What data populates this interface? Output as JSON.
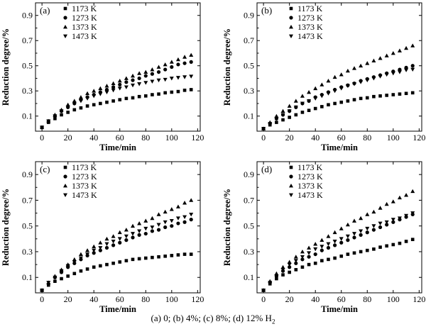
{
  "caption": {
    "text": "(a) 0; (b) 4%; (c) 8%; (d) 12% H",
    "subscript": "2"
  },
  "chart_data": [
    {
      "type": "scatter",
      "panel": "(a)",
      "xlabel": "Time/min",
      "ylabel": "Reduction degree/%",
      "xlim": [
        -5,
        122
      ],
      "ylim": [
        -0.02,
        1.0
      ],
      "xticks": [
        0,
        20,
        40,
        60,
        80,
        100,
        120
      ],
      "yticks": [
        0.1,
        0.3,
        0.5,
        0.7,
        0.9
      ],
      "legend_position": "top-left",
      "x": [
        0,
        5,
        10,
        15,
        20,
        25,
        30,
        35,
        40,
        45,
        50,
        55,
        60,
        65,
        70,
        75,
        80,
        85,
        90,
        95,
        100,
        105,
        110,
        115
      ],
      "series": [
        {
          "name": "1173 K",
          "marker": "square",
          "values": [
            0.01,
            0.05,
            0.08,
            0.11,
            0.13,
            0.15,
            0.165,
            0.18,
            0.19,
            0.2,
            0.21,
            0.22,
            0.23,
            0.24,
            0.245,
            0.255,
            0.26,
            0.27,
            0.275,
            0.285,
            0.29,
            0.295,
            0.305,
            0.31
          ]
        },
        {
          "name": "1273 K",
          "marker": "circle",
          "values": [
            0.01,
            0.06,
            0.1,
            0.14,
            0.17,
            0.2,
            0.23,
            0.25,
            0.27,
            0.29,
            0.31,
            0.33,
            0.35,
            0.37,
            0.385,
            0.4,
            0.42,
            0.435,
            0.45,
            0.47,
            0.49,
            0.51,
            0.52,
            0.53
          ]
        },
        {
          "name": "1373 K",
          "marker": "triangle-up",
          "values": [
            0.01,
            0.06,
            0.11,
            0.15,
            0.19,
            0.22,
            0.25,
            0.28,
            0.3,
            0.32,
            0.34,
            0.36,
            0.38,
            0.4,
            0.42,
            0.44,
            0.45,
            0.47,
            0.49,
            0.51,
            0.53,
            0.55,
            0.57,
            0.585
          ]
        },
        {
          "name": "1473 K",
          "marker": "triangle-down",
          "values": [
            0.01,
            0.06,
            0.1,
            0.14,
            0.17,
            0.2,
            0.22,
            0.24,
            0.26,
            0.275,
            0.29,
            0.305,
            0.32,
            0.33,
            0.345,
            0.355,
            0.365,
            0.375,
            0.385,
            0.39,
            0.4,
            0.405,
            0.41,
            0.415
          ]
        }
      ]
    },
    {
      "type": "scatter",
      "panel": "(b)",
      "xlabel": "Time/min",
      "ylabel": "Reduction degree/%",
      "xlim": [
        -5,
        122
      ],
      "ylim": [
        -0.02,
        1.0
      ],
      "xticks": [
        0,
        20,
        40,
        60,
        80,
        100,
        120
      ],
      "yticks": [
        0.1,
        0.3,
        0.5,
        0.7,
        0.9
      ],
      "legend_position": "top-right",
      "x": [
        0,
        5,
        10,
        15,
        20,
        25,
        30,
        35,
        40,
        45,
        50,
        55,
        60,
        65,
        70,
        75,
        80,
        85,
        90,
        95,
        100,
        105,
        110,
        115
      ],
      "series": [
        {
          "name": "1173 K",
          "marker": "square",
          "values": [
            0.0,
            0.03,
            0.05,
            0.07,
            0.09,
            0.11,
            0.13,
            0.145,
            0.16,
            0.175,
            0.19,
            0.2,
            0.21,
            0.22,
            0.23,
            0.24,
            0.245,
            0.255,
            0.26,
            0.265,
            0.27,
            0.275,
            0.28,
            0.285
          ]
        },
        {
          "name": "1273 K",
          "marker": "circle",
          "values": [
            0.0,
            0.04,
            0.08,
            0.11,
            0.14,
            0.17,
            0.2,
            0.22,
            0.25,
            0.27,
            0.29,
            0.31,
            0.33,
            0.345,
            0.36,
            0.38,
            0.395,
            0.41,
            0.425,
            0.44,
            0.455,
            0.47,
            0.485,
            0.5
          ]
        },
        {
          "name": "1373 K",
          "marker": "triangle-up",
          "values": [
            0.0,
            0.05,
            0.1,
            0.14,
            0.18,
            0.22,
            0.26,
            0.29,
            0.32,
            0.35,
            0.38,
            0.41,
            0.43,
            0.46,
            0.48,
            0.5,
            0.52,
            0.54,
            0.56,
            0.58,
            0.6,
            0.62,
            0.64,
            0.66
          ]
        },
        {
          "name": "1473 K",
          "marker": "triangle-down",
          "values": [
            0.0,
            0.04,
            0.08,
            0.11,
            0.14,
            0.17,
            0.2,
            0.22,
            0.24,
            0.26,
            0.28,
            0.3,
            0.32,
            0.34,
            0.355,
            0.37,
            0.385,
            0.4,
            0.415,
            0.43,
            0.44,
            0.45,
            0.465,
            0.47
          ]
        }
      ]
    },
    {
      "type": "scatter",
      "panel": "(c)",
      "xlabel": "Time/min",
      "ylabel": "Reduction degree/%",
      "xlim": [
        -5,
        122
      ],
      "ylim": [
        -0.02,
        1.0
      ],
      "xticks": [
        0,
        20,
        40,
        60,
        80,
        100,
        120
      ],
      "yticks": [
        0.1,
        0.3,
        0.5,
        0.7,
        0.9
      ],
      "legend_position": "top-left",
      "x": [
        0,
        5,
        10,
        15,
        20,
        25,
        30,
        35,
        40,
        45,
        50,
        55,
        60,
        65,
        70,
        75,
        80,
        85,
        90,
        95,
        100,
        105,
        110,
        115
      ],
      "series": [
        {
          "name": "1173 K",
          "marker": "square",
          "values": [
            0.0,
            0.04,
            0.07,
            0.09,
            0.11,
            0.13,
            0.15,
            0.165,
            0.18,
            0.19,
            0.2,
            0.21,
            0.22,
            0.23,
            0.24,
            0.245,
            0.25,
            0.255,
            0.26,
            0.265,
            0.27,
            0.275,
            0.28,
            0.28
          ]
        },
        {
          "name": "1273 K",
          "marker": "circle",
          "values": [
            0.0,
            0.05,
            0.1,
            0.14,
            0.18,
            0.21,
            0.24,
            0.27,
            0.29,
            0.31,
            0.33,
            0.35,
            0.37,
            0.39,
            0.41,
            0.43,
            0.44,
            0.46,
            0.47,
            0.49,
            0.5,
            0.52,
            0.53,
            0.55
          ]
        },
        {
          "name": "1373 K",
          "marker": "triangle-up",
          "values": [
            0.0,
            0.06,
            0.11,
            0.16,
            0.2,
            0.24,
            0.28,
            0.31,
            0.34,
            0.37,
            0.4,
            0.42,
            0.45,
            0.47,
            0.5,
            0.52,
            0.54,
            0.56,
            0.59,
            0.61,
            0.63,
            0.65,
            0.68,
            0.7
          ]
        },
        {
          "name": "1473 K",
          "marker": "triangle-down",
          "values": [
            0.0,
            0.06,
            0.1,
            0.15,
            0.19,
            0.22,
            0.25,
            0.28,
            0.31,
            0.33,
            0.36,
            0.38,
            0.4,
            0.42,
            0.44,
            0.46,
            0.48,
            0.49,
            0.51,
            0.53,
            0.54,
            0.56,
            0.57,
            0.59
          ]
        }
      ]
    },
    {
      "type": "scatter",
      "panel": "(d)",
      "xlabel": "Time/min",
      "ylabel": "Reduction degree/%",
      "xlim": [
        -5,
        122
      ],
      "ylim": [
        -0.02,
        1.0
      ],
      "xticks": [
        0,
        20,
        40,
        60,
        80,
        100,
        120
      ],
      "yticks": [
        0.1,
        0.3,
        0.5,
        0.7,
        0.9
      ],
      "legend_position": "top-right",
      "x": [
        0,
        5,
        10,
        15,
        20,
        25,
        30,
        35,
        40,
        45,
        50,
        55,
        60,
        65,
        70,
        75,
        80,
        85,
        90,
        95,
        100,
        105,
        110,
        115
      ],
      "series": [
        {
          "name": "1173 K",
          "marker": "square",
          "values": [
            0.0,
            0.05,
            0.09,
            0.12,
            0.14,
            0.16,
            0.18,
            0.2,
            0.21,
            0.23,
            0.24,
            0.25,
            0.265,
            0.28,
            0.29,
            0.3,
            0.31,
            0.32,
            0.335,
            0.345,
            0.355,
            0.365,
            0.38,
            0.395
          ]
        },
        {
          "name": "1273 K",
          "marker": "circle",
          "values": [
            0.0,
            0.06,
            0.11,
            0.15,
            0.18,
            0.21,
            0.24,
            0.26,
            0.28,
            0.31,
            0.33,
            0.35,
            0.37,
            0.39,
            0.41,
            0.43,
            0.45,
            0.47,
            0.49,
            0.51,
            0.53,
            0.55,
            0.57,
            0.59
          ]
        },
        {
          "name": "1373 K",
          "marker": "triangle-up",
          "values": [
            0.0,
            0.07,
            0.13,
            0.18,
            0.22,
            0.26,
            0.3,
            0.33,
            0.36,
            0.39,
            0.42,
            0.45,
            0.48,
            0.51,
            0.54,
            0.56,
            0.59,
            0.61,
            0.64,
            0.67,
            0.69,
            0.72,
            0.74,
            0.77
          ]
        },
        {
          "name": "1473 K",
          "marker": "triangle-down",
          "values": [
            0.0,
            0.06,
            0.11,
            0.16,
            0.2,
            0.23,
            0.26,
            0.29,
            0.32,
            0.34,
            0.36,
            0.38,
            0.4,
            0.42,
            0.44,
            0.46,
            0.48,
            0.5,
            0.52,
            0.53,
            0.55,
            0.56,
            0.58,
            0.6
          ]
        }
      ]
    }
  ]
}
